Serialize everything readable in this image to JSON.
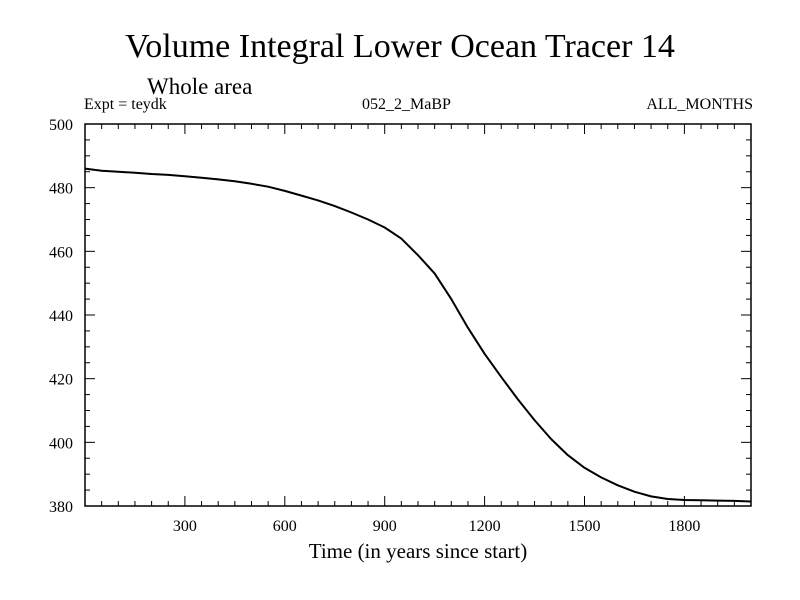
{
  "chart_data": {
    "type": "line",
    "title": "Volume Integral Lower Ocean Tracer 14",
    "subtitle": "Whole area",
    "annotations": {
      "left": "Expt = teydk",
      "center": "052_2_MaBP",
      "right": "ALL_MONTHS"
    },
    "xlabel": "Time (in years since start)",
    "ylabel": "",
    "xlim": [
      0,
      2000
    ],
    "ylim": [
      380,
      500
    ],
    "xticks": [
      300,
      600,
      900,
      1200,
      1500,
      1800
    ],
    "yticks": [
      380,
      400,
      420,
      440,
      460,
      480,
      500
    ],
    "grid": false,
    "series": [
      {
        "name": "Lower Ocean Tracer 14",
        "color": "#000000",
        "x": [
          0,
          50,
          100,
          150,
          200,
          250,
          300,
          350,
          400,
          450,
          500,
          550,
          600,
          650,
          700,
          750,
          800,
          850,
          900,
          950,
          1000,
          1050,
          1100,
          1150,
          1200,
          1250,
          1300,
          1350,
          1400,
          1450,
          1500,
          1550,
          1600,
          1650,
          1700,
          1750,
          1800,
          1850,
          1900,
          1950,
          2000
        ],
        "values": [
          486,
          485.3,
          485,
          484.7,
          484.3,
          484,
          483.6,
          483.1,
          482.6,
          482,
          481.2,
          480.3,
          479,
          477.5,
          476,
          474.2,
          472.2,
          470,
          467.5,
          464,
          458.8,
          453,
          445,
          436,
          427.8,
          420.5,
          413.5,
          407,
          401,
          396,
          392,
          389,
          386.5,
          384.5,
          383,
          382.2,
          381.9,
          381.8,
          381.7,
          381.6,
          381.4
        ]
      }
    ]
  }
}
